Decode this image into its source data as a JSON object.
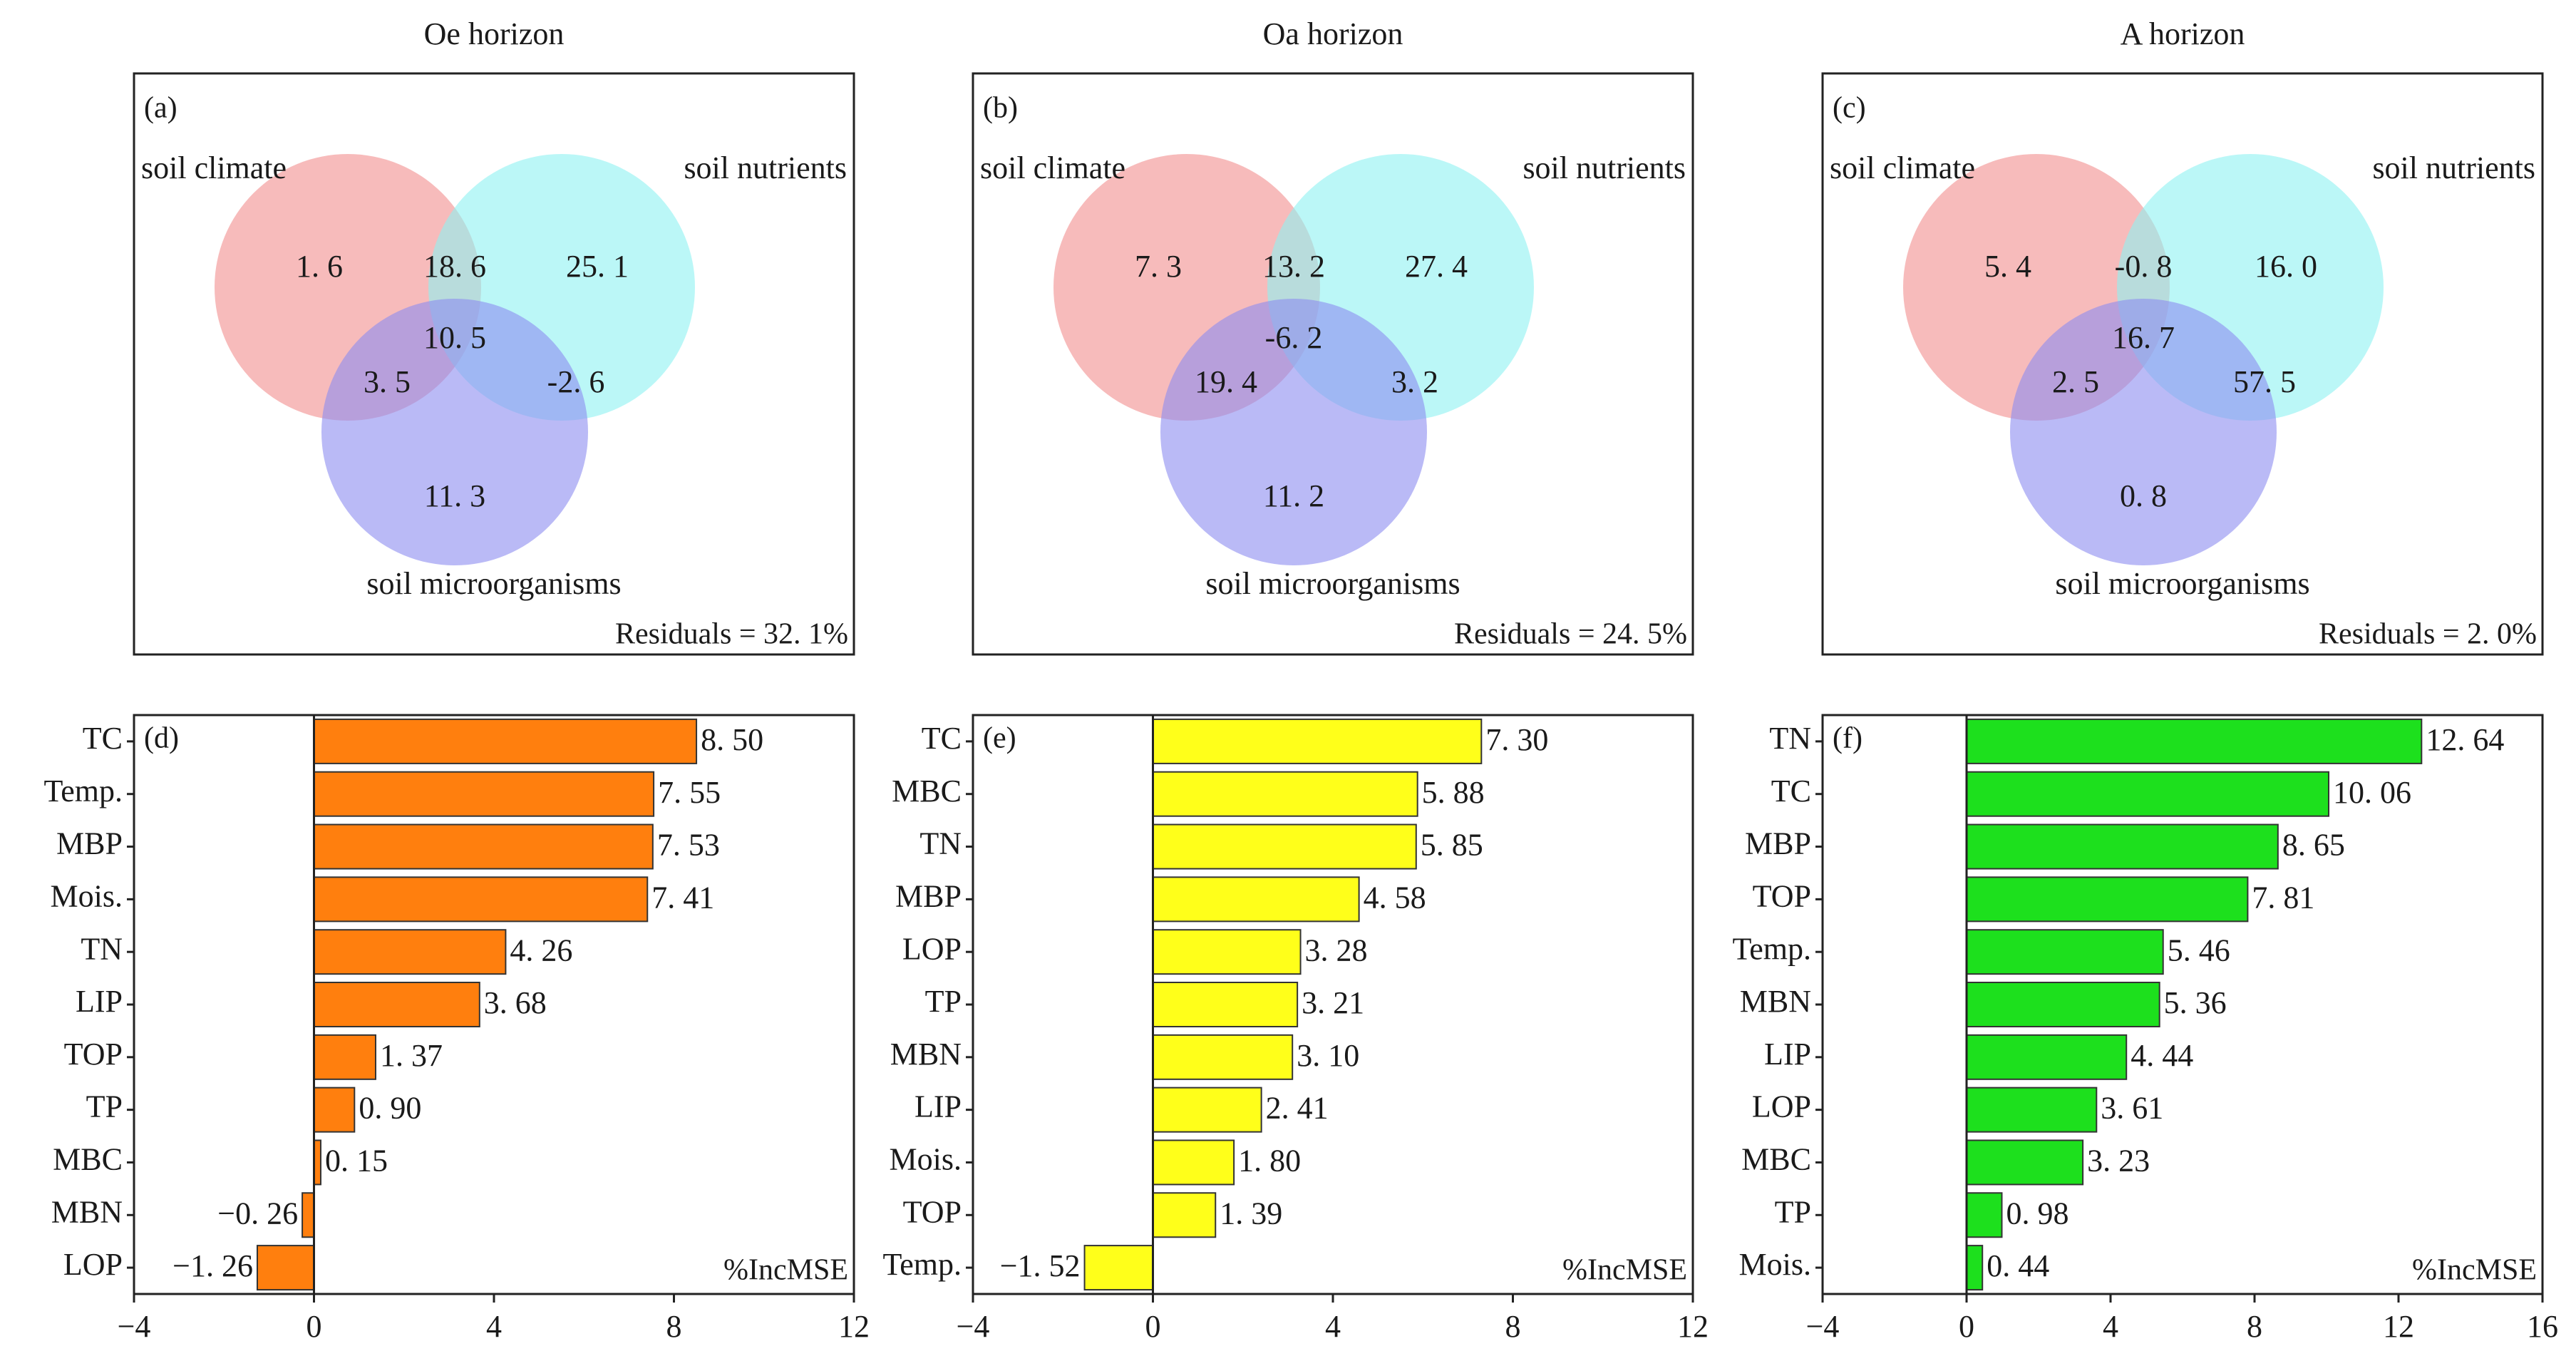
{
  "chart_data": [
    {
      "type": "venn",
      "panel": "(a)",
      "title": "Oe horizon",
      "sets": [
        "soil climate",
        "soil nutrients",
        "soil microorganisms"
      ],
      "regions": {
        "climate": "1. 6",
        "climate_nutrients": "18. 6",
        "nutrients": "25. 1",
        "all": "10. 5",
        "climate_micro": "3. 5",
        "nutrients_micro": "-2. 6",
        "micro": "11. 3"
      },
      "residuals": "Residuals = 32. 1%",
      "colors": {
        "climate": "#f28e8e",
        "nutrients": "#8ef2f2",
        "micro": "#8c8cf0"
      }
    },
    {
      "type": "venn",
      "panel": "(b)",
      "title": "Oa horizon",
      "sets": [
        "soil climate",
        "soil nutrients",
        "soil microorganisms"
      ],
      "regions": {
        "climate": "7. 3",
        "climate_nutrients": "13. 2",
        "nutrients": "27. 4",
        "all": "-6. 2",
        "climate_micro": "19. 4",
        "nutrients_micro": "3. 2",
        "micro": "11. 2"
      },
      "residuals": "Residuals = 24. 5%",
      "colors": {
        "climate": "#f28e8e",
        "nutrients": "#8ef2f2",
        "micro": "#8c8cf0"
      }
    },
    {
      "type": "venn",
      "panel": "(c)",
      "title": "A horizon",
      "sets": [
        "soil climate",
        "soil nutrients",
        "soil microorganisms"
      ],
      "regions": {
        "climate": "5. 4",
        "climate_nutrients": "-0. 8",
        "nutrients": "16. 0",
        "all": "16. 7",
        "climate_micro": "2. 5",
        "nutrients_micro": "57. 5",
        "micro": "0. 8"
      },
      "residuals": "Residuals = 2. 0%",
      "colors": {
        "climate": "#f28e8e",
        "nutrients": "#8ef2f2",
        "micro": "#8c8cf0"
      }
    },
    {
      "type": "bar",
      "orientation": "horizontal",
      "panel": "(d)",
      "categories": [
        "TC",
        "Temp.",
        "MBP",
        "Mois.",
        "TN",
        "LIP",
        "TOP",
        "TP",
        "MBC",
        "MBN",
        "LOP"
      ],
      "values": [
        8.5,
        7.55,
        7.53,
        7.41,
        4.26,
        3.68,
        1.37,
        0.9,
        0.15,
        -0.26,
        -1.26
      ],
      "labels": [
        "8. 50",
        "7. 55",
        "7. 53",
        "7. 41",
        "4. 26",
        "3. 68",
        "1. 37",
        "0. 90",
        "0. 15",
        "−0. 26",
        "−1. 26"
      ],
      "xlabel": "%IncMSE",
      "xlim": [
        -4,
        12
      ],
      "xticks": [
        -4,
        0,
        4,
        8,
        12
      ],
      "xtick_labels": [
        "−4",
        "0",
        "4",
        "8",
        "12"
      ],
      "color": "#ff7f0e"
    },
    {
      "type": "bar",
      "orientation": "horizontal",
      "panel": "(e)",
      "categories": [
        "TC",
        "MBC",
        "TN",
        "MBP",
        "LOP",
        "TP",
        "MBN",
        "LIP",
        "Mois.",
        "TOP",
        "Temp."
      ],
      "values": [
        7.3,
        5.88,
        5.85,
        4.58,
        3.28,
        3.21,
        3.1,
        2.41,
        1.8,
        1.39,
        -1.52
      ],
      "labels": [
        "7. 30",
        "5. 88",
        "5. 85",
        "4. 58",
        "3. 28",
        "3. 21",
        "3. 10",
        "2. 41",
        "1. 80",
        "1. 39",
        "−1. 52"
      ],
      "xlabel": "%IncMSE",
      "xlim": [
        -4,
        12
      ],
      "xticks": [
        -4,
        0,
        4,
        8,
        12
      ],
      "xtick_labels": [
        "−4",
        "0",
        "4",
        "8",
        "12"
      ],
      "color": "#ffff1a"
    },
    {
      "type": "bar",
      "orientation": "horizontal",
      "panel": "(f)",
      "categories": [
        "TN",
        "TC",
        "MBP",
        "TOP",
        "Temp.",
        "MBN",
        "LIP",
        "LOP",
        "MBC",
        "TP",
        "Mois."
      ],
      "values": [
        12.64,
        10.06,
        8.65,
        7.81,
        5.46,
        5.36,
        4.44,
        3.61,
        3.23,
        0.98,
        0.44
      ],
      "labels": [
        "12. 64",
        "10. 06",
        "8. 65",
        "7. 81",
        "5. 46",
        "5. 36",
        "4. 44",
        "3. 61",
        "3. 23",
        "0. 98",
        "0. 44"
      ],
      "xlabel": "%IncMSE",
      "xlim": [
        -4,
        16
      ],
      "xticks": [
        -4,
        0,
        4,
        8,
        12,
        16
      ],
      "xtick_labels": [
        "−4",
        "0",
        "4",
        "8",
        "12",
        "16"
      ],
      "color": "#1de01d"
    }
  ]
}
